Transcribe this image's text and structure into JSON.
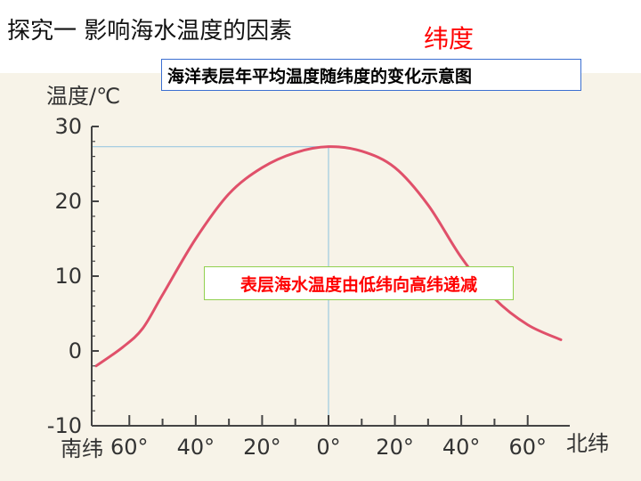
{
  "slide": {
    "title": "探究一 影响海水温度的因素",
    "topic": "纬度"
  },
  "annotation": "表层海水温度由低纬向高纬递减",
  "colors": {
    "title": "#111111",
    "topic": "#ff0000",
    "curve": "#e0506a",
    "reference": "#9cc9e0",
    "caption_border": "#3b6fd1",
    "annotation_border": "#92d050",
    "annotation_text": "#ff0000"
  },
  "chart_data": {
    "type": "line",
    "title": "海洋表层年平均温度随纬度的变化示意图",
    "ylabel": "温度/℃",
    "ylim": [
      -10,
      30
    ],
    "yticks": [
      -10,
      0,
      10,
      20,
      30
    ],
    "xlim": [
      -70,
      70
    ],
    "xtick_labels": [
      "60°",
      "40°",
      "20°",
      "0°",
      "20°",
      "40°",
      "60°"
    ],
    "xtick_values": [
      -60,
      -40,
      -20,
      0,
      20,
      40,
      60
    ],
    "south_label": "南纬",
    "north_label": "北纬",
    "series": [
      {
        "x": [
          -70,
          -62,
          -56,
          -50,
          -40,
          -30,
          -20,
          -10,
          0,
          10,
          20,
          30,
          40,
          50,
          60,
          70
        ],
        "y": [
          -2,
          0.5,
          3,
          7.5,
          15,
          21,
          24.5,
          26.5,
          27.3,
          26.7,
          24.5,
          19.5,
          12.5,
          7,
          3.5,
          1.5
        ]
      }
    ],
    "reference_x": 0
  }
}
